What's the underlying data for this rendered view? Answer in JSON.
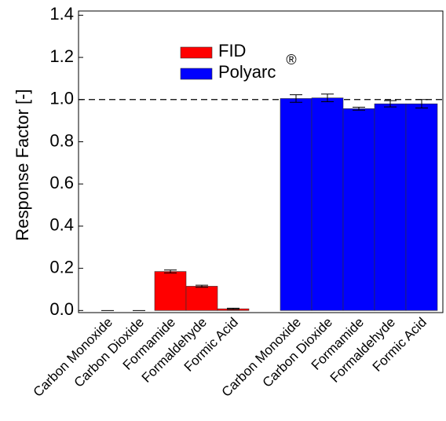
{
  "chart_data": {
    "type": "bar",
    "y_label": "Response Factor [-]",
    "categories": [
      "Carbon Monoxide",
      "Carbon Dioxide",
      "Formamide",
      "Formaldehyde",
      "Formic Acid",
      "Carbon Monoxide",
      "Carbon Dioxide",
      "Formamide",
      "Formaldehyde",
      "Formic Acid"
    ],
    "series": [
      {
        "name": "FID",
        "color": "#ff0000",
        "values": [
          0,
          0,
          0.185,
          0.115,
          0.008,
          null,
          null,
          null,
          null,
          null
        ],
        "errors": [
          0,
          0,
          0.007,
          0.005,
          0.003,
          null,
          null,
          null,
          null,
          null
        ]
      },
      {
        "name": "Polyarc",
        "color": "#0000ff",
        "values": [
          null,
          null,
          null,
          null,
          null,
          1.005,
          1.008,
          0.957,
          0.98,
          0.98
        ],
        "errors": [
          null,
          null,
          null,
          null,
          null,
          0.018,
          0.018,
          0.007,
          0.015,
          0.02
        ]
      }
    ],
    "annotation": "®",
    "reference_line": 1.0,
    "ylim": [
      -0.01,
      1.42
    ],
    "yticks": [
      {
        "value": 0,
        "label": "0.0"
      },
      0.2,
      0.4,
      0.6,
      0.8,
      {
        "value": 1,
        "label": "1.0"
      },
      1.2,
      1.4
    ]
  }
}
